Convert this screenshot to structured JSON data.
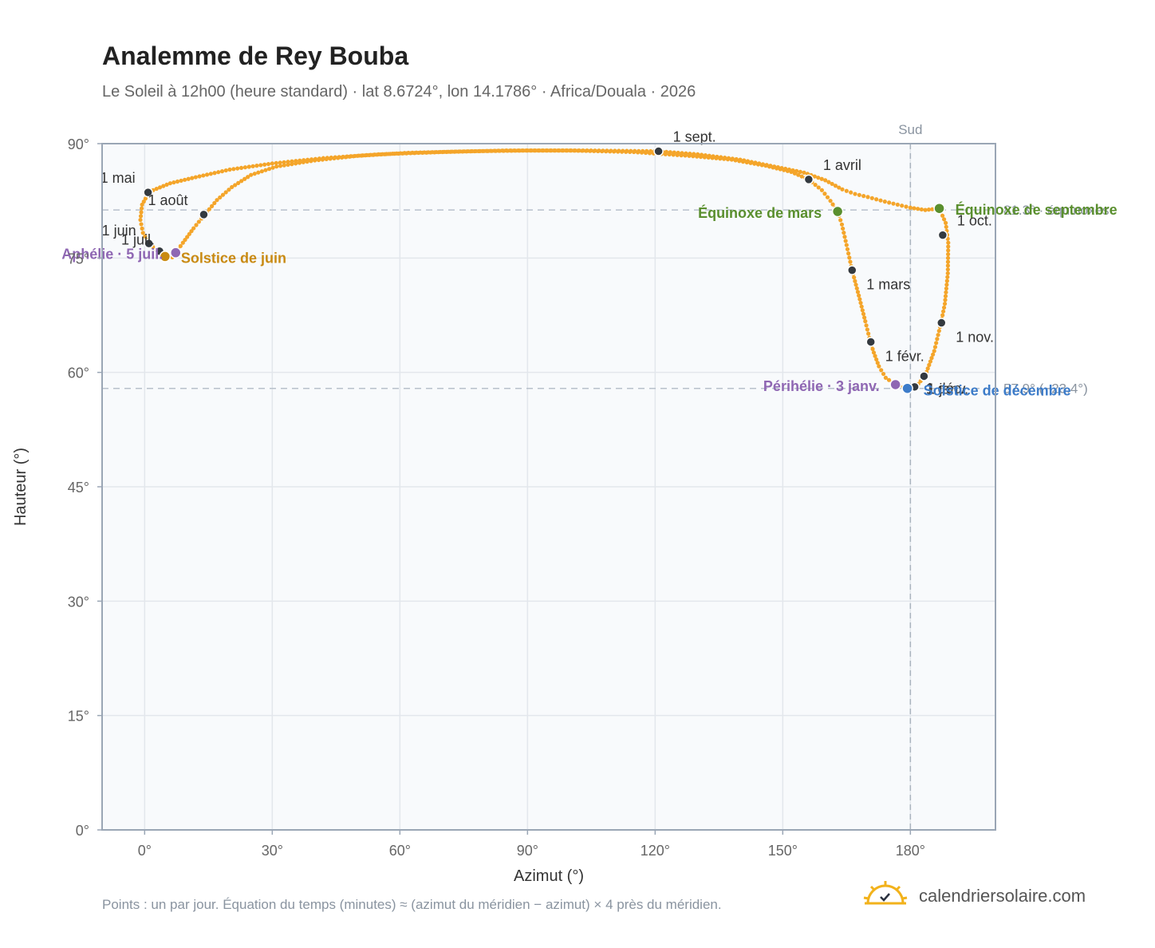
{
  "title": "Analemme de Rey Bouba",
  "subtitle": "Le Soleil à 12h00 (heure standard) · lat 8.6724°, lon 14.1786° · Africa/Douala · 2026",
  "footnote": "Points : un par jour. Équation du temps (minutes) ≈ (azimut du méridien − azimut) × 4 près du méridien.",
  "brand": {
    "name": "calendriersolaire.com",
    "icon": "sun-check-icon"
  },
  "colors": {
    "curve": "#f4a52a",
    "month_marker": "#343a40",
    "equinox": "#5a8f2e",
    "june_solstice": "#c98a12",
    "december_solstice": "#3d7cc9",
    "apsis": "#8f67b3",
    "plot_background": "#f8fafc",
    "grid": "#e3e7ec",
    "axis_frame": "#9aa6b5"
  },
  "chart_data": {
    "type": "scatter",
    "title": "Analemme de Rey Bouba",
    "xlabel": "Azimut (°)",
    "ylabel": "Hauteur (°)",
    "xlim": [
      -10,
      200
    ],
    "ylim": [
      0,
      90
    ],
    "x_ticks": [
      0,
      30,
      60,
      90,
      120,
      150,
      180
    ],
    "x_tick_labels": [
      "0°",
      "30°",
      "60°",
      "90°",
      "120°",
      "150°",
      "180°"
    ],
    "y_ticks": [
      0,
      15,
      30,
      45,
      60,
      75,
      90
    ],
    "y_tick_labels": [
      "0°",
      "15°",
      "30°",
      "45°",
      "60°",
      "75°",
      "90°"
    ],
    "grid": true,
    "meridian": {
      "azimuth": 180,
      "label": "Sud"
    },
    "reference_lines": [
      {
        "altitude": 81.3,
        "label": "81.3° · équinoxes"
      },
      {
        "altitude": 57.9,
        "label": "57.9° (−23.4°)"
      }
    ],
    "daily_points_path": [
      [
        179.3,
        57.9
      ],
      [
        176.5,
        58.4
      ],
      [
        174.2,
        59.3
      ],
      [
        172.6,
        60.8
      ],
      [
        171.4,
        62.6
      ],
      [
        170.6,
        64.0
      ],
      [
        169.4,
        66.7
      ],
      [
        168.1,
        69.6
      ],
      [
        166.3,
        73.4
      ],
      [
        165.0,
        76.7
      ],
      [
        163.9,
        79.4
      ],
      [
        162.9,
        81.1
      ],
      [
        161.2,
        82.5
      ],
      [
        159.2,
        83.9
      ],
      [
        156.1,
        85.3
      ],
      [
        152.0,
        86.3
      ],
      [
        146.0,
        87.1
      ],
      [
        138.0,
        87.9
      ],
      [
        128.0,
        88.4
      ],
      [
        115.0,
        88.9
      ],
      [
        100.0,
        89.1
      ],
      [
        85.0,
        89.1
      ],
      [
        70.0,
        88.9
      ],
      [
        55.0,
        88.6
      ],
      [
        42.0,
        88.1
      ],
      [
        30.0,
        87.4
      ],
      [
        20.0,
        86.6
      ],
      [
        12.0,
        85.6
      ],
      [
        6.0,
        84.8
      ],
      [
        2.0,
        83.9
      ],
      [
        1.0,
        83.6
      ],
      [
        -0.6,
        82.0
      ],
      [
        -1.0,
        80.0
      ],
      [
        -0.4,
        78.3
      ],
      [
        1.1,
        76.9
      ],
      [
        2.8,
        76.0
      ],
      [
        4.8,
        75.2
      ],
      [
        6.5,
        75.1
      ],
      [
        7.3,
        75.7
      ],
      [
        9.0,
        77.0
      ],
      [
        11.5,
        78.9
      ],
      [
        14.0,
        80.6
      ],
      [
        17.0,
        82.6
      ],
      [
        20.5,
        84.3
      ],
      [
        25.0,
        85.9
      ],
      [
        31.0,
        87.0
      ],
      [
        40.0,
        87.8
      ],
      [
        50.0,
        88.4
      ],
      [
        62.0,
        88.8
      ],
      [
        76.0,
        89.0
      ],
      [
        90.0,
        89.1
      ],
      [
        104.0,
        89.1
      ],
      [
        120.8,
        89.0
      ],
      [
        130.0,
        88.6
      ],
      [
        140.0,
        87.9
      ],
      [
        148.0,
        87.0
      ],
      [
        155.0,
        86.2
      ],
      [
        160.0,
        85.2
      ],
      [
        164.0,
        84.0
      ],
      [
        167.0,
        83.4
      ],
      [
        170.0,
        83.0
      ],
      [
        174.0,
        82.4
      ],
      [
        177.0,
        82.0
      ],
      [
        180.0,
        81.6
      ],
      [
        183.5,
        81.3
      ],
      [
        186.8,
        81.5
      ],
      [
        188.3,
        79.6
      ],
      [
        188.9,
        77.0
      ],
      [
        188.8,
        73.0
      ],
      [
        188.1,
        69.0
      ],
      [
        187.2,
        66.5
      ],
      [
        185.6,
        62.8
      ],
      [
        183.5,
        59.6
      ],
      [
        181.3,
        58.1
      ],
      [
        179.3,
        57.9
      ]
    ],
    "month_markers": [
      {
        "label": "1 janv.",
        "x": 183.2,
        "y": 59.5
      },
      {
        "label": "1 févr.",
        "x": 170.7,
        "y": 64.0
      },
      {
        "label": "1 mars",
        "x": 166.3,
        "y": 73.4
      },
      {
        "label": "1 avril",
        "x": 156.1,
        "y": 85.3
      },
      {
        "label": "1 mai",
        "x": 0.8,
        "y": 83.6
      },
      {
        "label": "1 juin",
        "x": 1.0,
        "y": 76.9
      },
      {
        "label": "1 juil.",
        "x": 3.5,
        "y": 75.9
      },
      {
        "label": "1 août",
        "x": 13.9,
        "y": 80.7
      },
      {
        "label": "1 sept.",
        "x": 120.8,
        "y": 89.0
      },
      {
        "label": "1 oct.",
        "x": 187.6,
        "y": 78.0
      },
      {
        "label": "1 nov.",
        "x": 187.3,
        "y": 66.5
      },
      {
        "label": "1 déc.",
        "x": 181.0,
        "y": 58.1
      }
    ],
    "events": [
      {
        "label": "Équinoxe de mars",
        "x": 162.9,
        "y": 81.1,
        "color_key": "equinox"
      },
      {
        "label": "Équinoxe de septembre",
        "x": 186.8,
        "y": 81.5,
        "color_key": "equinox"
      },
      {
        "label": "Solstice de juin",
        "x": 4.8,
        "y": 75.2,
        "color_key": "june_solstice"
      },
      {
        "label": "Solstice de décembre",
        "x": 179.3,
        "y": 57.9,
        "color_key": "december_solstice"
      },
      {
        "label": "Aphélie · 5 juil.",
        "x": 7.3,
        "y": 75.7,
        "color_key": "apsis"
      },
      {
        "label": "Périhélie · 3 janv.",
        "x": 176.5,
        "y": 58.4,
        "color_key": "apsis"
      }
    ]
  }
}
